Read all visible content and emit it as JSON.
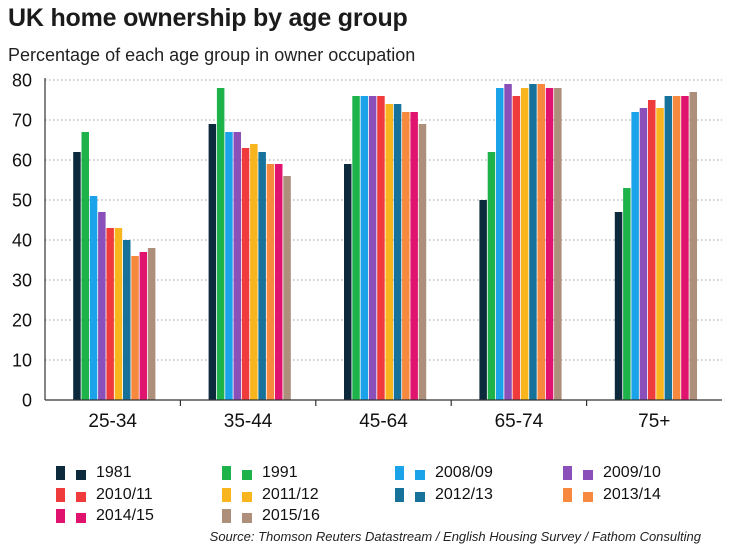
{
  "title": "UK home ownership by age group",
  "subtitle": "Percentage of each age group in owner occupation",
  "source": "Source: Thomson Reuters Datastream / English Housing Survey / Fathom Consulting",
  "chart_data": {
    "type": "bar",
    "title": "UK home ownership by age group",
    "subtitle": "Percentage of each age group in owner occupation",
    "categories": [
      "25-34",
      "35-44",
      "45-64",
      "65-74",
      "75+"
    ],
    "ylim": [
      0,
      80
    ],
    "yticks": [
      0,
      10,
      20,
      30,
      40,
      50,
      60,
      70,
      80
    ],
    "grid": true,
    "legend_position": "bottom",
    "series": [
      {
        "name": "1981",
        "color": "#0d2a3d",
        "values": [
          62,
          69,
          59,
          50,
          47
        ]
      },
      {
        "name": "1991",
        "color": "#1db34a",
        "values": [
          67,
          78,
          76,
          62,
          53
        ]
      },
      {
        "name": "2008/09",
        "color": "#1aa3e8",
        "values": [
          51,
          67,
          76,
          78,
          72
        ]
      },
      {
        "name": "2009/10",
        "color": "#8a4fb8",
        "values": [
          47,
          67,
          76,
          79,
          73
        ]
      },
      {
        "name": "2010/11",
        "color": "#ef3b3b",
        "values": [
          43,
          63,
          76,
          76,
          75
        ]
      },
      {
        "name": "2011/12",
        "color": "#f9b51e",
        "values": [
          43,
          64,
          74,
          78,
          73
        ]
      },
      {
        "name": "2012/13",
        "color": "#16729a",
        "values": [
          40,
          62,
          74,
          79,
          76
        ]
      },
      {
        "name": "2013/14",
        "color": "#f6893d",
        "values": [
          36,
          59,
          72,
          79,
          76
        ]
      },
      {
        "name": "2014/15",
        "color": "#e0136f",
        "values": [
          37,
          59,
          72,
          78,
          76
        ]
      },
      {
        "name": "2015/16",
        "color": "#ad8f7b",
        "values": [
          38,
          56,
          69,
          78,
          77
        ]
      }
    ]
  }
}
